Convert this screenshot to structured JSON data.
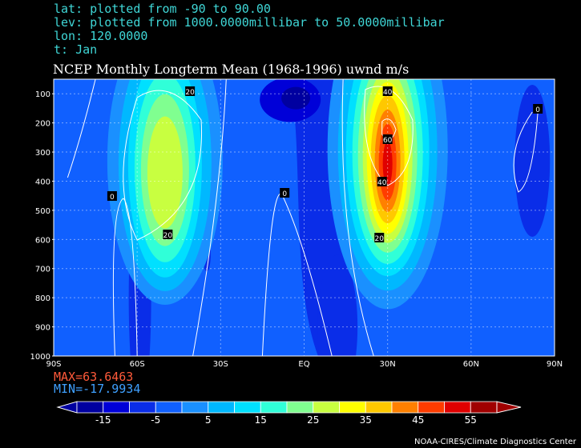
{
  "header": {
    "lat_line": "lat: plotted from -90 to 90.00",
    "lev_line": "lev: plotted from 1000.0000millibar to 50.0000millibar",
    "lon_line": "lon: 120.0000",
    "t_line": "t: Jan"
  },
  "stats": {
    "max": "MAX=63.6463",
    "min": "MIN=-17.9934"
  },
  "credit": "NOAA-CIRES/Climate Diagnostics Center",
  "chart_data": {
    "type": "heatmap",
    "title": "NCEP Monthly Longterm Mean (1968-1996) uwnd m/s",
    "x_range": [
      -90,
      90
    ],
    "y_range": [
      1000,
      50
    ],
    "x_ticks": [
      "90S",
      "60S",
      "30S",
      "EQ",
      "30N",
      "60N",
      "90N"
    ],
    "y_ticks": [
      "100",
      "200",
      "300",
      "400",
      "500",
      "600",
      "700",
      "800",
      "900",
      "1000"
    ],
    "grid": true,
    "colorbar": {
      "ticks": [
        "-15",
        "-5",
        "5",
        "15",
        "25",
        "35",
        "45",
        "55"
      ],
      "colors": [
        "#0000a0",
        "#0000d8",
        "#0a2de8",
        "#1060ff",
        "#1a90ff",
        "#00b8ff",
        "#00e0ff",
        "#30ffd8",
        "#80ff90",
        "#c8ff40",
        "#ffff00",
        "#ffc800",
        "#ff8000",
        "#ff3c00",
        "#e00000",
        "#a00000"
      ]
    },
    "contour_labels": [
      "20",
      "0",
      "20",
      "0",
      "40",
      "60",
      "40",
      "20",
      "0"
    ],
    "max_value": 63.6463,
    "min_value": -17.9934
  }
}
